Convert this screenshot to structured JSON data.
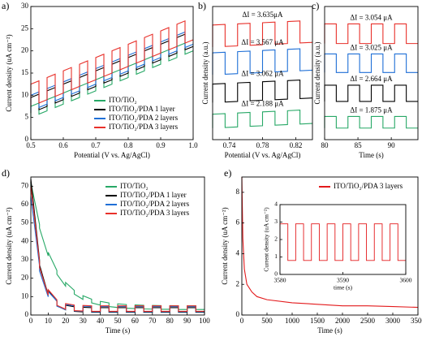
{
  "chart_data": [
    {
      "type": "line",
      "label": "a)",
      "xlabel": "Potential (V vs. Ag/AgCl)",
      "ylabel": "Current density (uA cm⁻²)",
      "xlim": [
        0.5,
        1.0
      ],
      "ylim": [
        0,
        30
      ],
      "xticks": [
        0.5,
        0.6,
        0.7,
        0.8,
        0.9,
        {
          "value": 1,
          "label": "1.0"
        }
      ],
      "yticks": [
        0,
        5,
        10,
        15,
        20,
        25,
        30
      ],
      "legend": "lower right",
      "x": [
        0.5,
        0.5,
        0.525,
        0.525,
        0.55,
        0.55,
        0.575,
        0.575,
        0.6,
        0.6,
        0.625,
        0.625,
        0.65,
        0.65,
        0.675,
        0.675,
        0.7,
        0.7,
        0.725,
        0.725,
        0.75,
        0.75,
        0.775,
        0.775,
        0.8,
        0.8,
        0.825,
        0.825,
        0.85,
        0.85,
        0.875,
        0.875,
        0.9,
        0.9,
        0.925,
        0.925,
        0.95,
        0.95,
        0.975,
        0.975,
        1.0
      ],
      "series": [
        {
          "name": "ITO/TiO₂",
          "color": "#27a866",
          "values": [
            5,
            7.5,
            8.25,
            5.75,
            6.5,
            9,
            9.75,
            7.25,
            8,
            10.5,
            11.25,
            8.75,
            9.5,
            12,
            12.75,
            10.25,
            11,
            13.5,
            14.25,
            11.75,
            12.5,
            15,
            15.75,
            13.25,
            14,
            16.5,
            17.25,
            14.75,
            15.5,
            18,
            18.75,
            16.25,
            17,
            19.5,
            20.25,
            17.75,
            18.5,
            21,
            21.75,
            19.25,
            20
          ]
        },
        {
          "name": "ITO/TiO₂/PDA  1 layer",
          "color": "#000000",
          "values": [
            6,
            9.5,
            10.25,
            6.75,
            7.5,
            11,
            11.75,
            8.25,
            9,
            12.5,
            13.25,
            9.75,
            10.5,
            14,
            14.75,
            11.25,
            12,
            15.5,
            16.25,
            12.75,
            13.5,
            17,
            17.75,
            14.25,
            15,
            18.5,
            19.25,
            15.75,
            16.5,
            20,
            20.75,
            17.25,
            18,
            21.5,
            22.25,
            18.75,
            19.5,
            23,
            23.75,
            20.25,
            21
          ]
        },
        {
          "name": "ITO/TiO₂/PDA  2 layers",
          "color": "#1f6fd6",
          "values": [
            6.5,
            10,
            10.75,
            7.25,
            8,
            11.5,
            12.25,
            8.75,
            9.5,
            13,
            13.75,
            10.25,
            11,
            14.5,
            15.25,
            11.75,
            12.5,
            16,
            16.75,
            13.25,
            14,
            17.5,
            18.25,
            14.75,
            15.5,
            19,
            19.75,
            16.25,
            17,
            20.5,
            21.25,
            17.75,
            18.5,
            22,
            22.75,
            19.25,
            20,
            23.5,
            24.25,
            20.75,
            21.5
          ]
        },
        {
          "name": "ITO/TiO₂/PDA  3 layers",
          "color": "#e8312b",
          "values": [
            7.5,
            12.5,
            13.25,
            8.25,
            9,
            14,
            14.75,
            9.75,
            10.5,
            15.5,
            16.25,
            11.25,
            12,
            17,
            17.75,
            12.75,
            13.5,
            18.5,
            19.25,
            14.25,
            15,
            20,
            20.75,
            15.75,
            16.5,
            21.5,
            22.25,
            17.25,
            18,
            23,
            23.75,
            18.75,
            19.5,
            24.5,
            25.25,
            20.25,
            21,
            26,
            26.75,
            21.75,
            22.5
          ]
        }
      ]
    },
    {
      "type": "line",
      "label": "b)",
      "xlabel": "Potential (V vs. Ag/AgCl)",
      "ylabel": "Current density (a.u.)",
      "xlim": [
        0.72,
        0.84
      ],
      "ylim": [
        0,
        11.5
      ],
      "xticks": [
        0.74,
        0.78,
        0.82
      ],
      "x": [
        0.72,
        0.72,
        0.735,
        0.735,
        0.75,
        0.75,
        0.765,
        0.765,
        0.78,
        0.78,
        0.795,
        0.795,
        0.81,
        0.81,
        0.825,
        0.825,
        0.84
      ],
      "annotations": [
        "ΔI = 3.635μA",
        "ΔI = 3.567 μA",
        "ΔI = 3.062 μA",
        "ΔI = 2.188 μA"
      ],
      "series": [
        {
          "color": "#27a866",
          "values": [
            1,
            2.2,
            2.25,
            1.05,
            1.1,
            2.3,
            2.35,
            1.15,
            1.2,
            2.4,
            2.45,
            1.25,
            1.3,
            2.5,
            2.55,
            1.35,
            1.4
          ]
        },
        {
          "color": "#000000",
          "values": [
            3.2,
            4.8,
            4.85,
            3.25,
            3.3,
            4.9,
            4.95,
            3.35,
            3.4,
            5,
            5.05,
            3.45,
            3.5,
            5.1,
            5.15,
            3.55,
            3.6
          ]
        },
        {
          "color": "#1f6fd6",
          "values": [
            5.6,
            7.5,
            7.55,
            5.65,
            5.7,
            7.6,
            7.65,
            5.75,
            5.8,
            7.7,
            7.75,
            5.85,
            5.9,
            7.8,
            7.85,
            5.95,
            6
          ]
        },
        {
          "color": "#e8312b",
          "values": [
            8,
            9.9,
            9.95,
            8.05,
            8.1,
            10,
            10.05,
            8.15,
            8.2,
            10.1,
            10.15,
            8.25,
            8.3,
            10.2,
            10.25,
            8.35,
            8.4
          ]
        }
      ]
    },
    {
      "type": "line",
      "label": "c)",
      "xlabel": "Time (s)",
      "ylabel": "Current density (a.u.)",
      "xlim": [
        80,
        94
      ],
      "ylim": [
        0,
        11.5
      ],
      "xticks": [
        80,
        85,
        90
      ],
      "x": [
        80,
        80,
        81.75,
        81.75,
        83.5,
        83.5,
        85.25,
        85.25,
        87,
        87,
        88.75,
        88.75,
        90.5,
        90.5,
        92.25,
        92.25,
        94
      ],
      "annotations": [
        "ΔI = 3.054 μA",
        "ΔI = 3.025 μA",
        "ΔI = 2.664 μA",
        "ΔI = 1.875 μA"
      ],
      "series": [
        {
          "color": "#27a866",
          "values": [
            1,
            2,
            2,
            1,
            1,
            2,
            2,
            1,
            1,
            2,
            2,
            1,
            1,
            2,
            2,
            1,
            1
          ]
        },
        {
          "color": "#000000",
          "values": [
            3.3,
            4.7,
            4.7,
            3.3,
            3.3,
            4.7,
            4.7,
            3.3,
            3.3,
            4.7,
            4.7,
            3.3,
            3.3,
            4.7,
            4.7,
            3.3,
            3.3
          ]
        },
        {
          "color": "#1f6fd6",
          "values": [
            5.8,
            7.4,
            7.4,
            5.8,
            5.8,
            7.4,
            7.4,
            5.8,
            5.8,
            7.4,
            7.4,
            5.8,
            5.8,
            7.4,
            7.4,
            5.8,
            5.8
          ]
        },
        {
          "color": "#e8312b",
          "values": [
            8.3,
            10,
            10,
            8.3,
            8.3,
            10,
            10,
            8.3,
            8.3,
            10,
            10,
            8.3,
            8.3,
            10,
            10,
            8.3,
            8.3
          ]
        }
      ]
    },
    {
      "type": "line",
      "label": "d)",
      "xlabel": "Time (s)",
      "ylabel": "Current density (uA cm⁻²)",
      "xlim": [
        0,
        100
      ],
      "ylim": [
        0,
        75
      ],
      "xticks": [
        0,
        10,
        20,
        30,
        40,
        50,
        60,
        70,
        80,
        90,
        100
      ],
      "yticks": [
        0,
        10,
        20,
        30,
        40,
        50,
        60,
        70
      ],
      "legend": "upper right",
      "x": [
        0,
        0,
        5,
        5,
        10,
        10,
        15,
        15,
        20,
        20,
        25,
        25,
        30,
        30,
        35,
        35,
        40,
        40,
        45,
        45,
        50,
        50,
        55,
        55,
        60,
        60,
        65,
        65,
        70,
        70,
        75,
        75,
        80,
        80,
        85,
        85,
        90,
        90,
        95,
        95,
        100
      ],
      "series": [
        {
          "name": "ITO/TiO₂",
          "color": "#27a866",
          "values": [
            70,
            72,
            49.2,
            47.2,
            32.1,
            34.1,
            24.2,
            22.2,
            15.7,
            17.7,
            13.4,
            11.4,
            8.5,
            10.5,
            8.6,
            6.6,
            5.4,
            7.4,
            6.6,
            4.6,
            4.1,
            6.1,
            5.7,
            3.7,
            3.5,
            5.5,
            5.3,
            3.3,
            3.2,
            5.2,
            5.1,
            3.1,
            3.1,
            5.1,
            5,
            3,
            3,
            5,
            5,
            3,
            3
          ]
        },
        {
          "name": "ITO/TiO₂/PDA  1 layer",
          "color": "#000000",
          "values": [
            71.5,
            74,
            29.8,
            27.3,
            11,
            13.5,
            7.5,
            5,
            2.8,
            5.3,
            4.5,
            2,
            1.7,
            4.2,
            4,
            1.5,
            1.5,
            4,
            4,
            1.5,
            1.5,
            4,
            4,
            1.5,
            1.5,
            4,
            4,
            1.5,
            1.5,
            4,
            4,
            1.5,
            1.5,
            4,
            4,
            1.5,
            1.5,
            4,
            4,
            1.5,
            1.5
          ]
        },
        {
          "name": "ITO/TiO₂/PDA  2 layers",
          "color": "#1f6fd6",
          "values": [
            61.8,
            64.6,
            26.7,
            23.9,
            9.9,
            12.7,
            7.6,
            4.8,
            2.9,
            5.7,
            5,
            2.2,
            2,
            4.8,
            4.6,
            1.8,
            1.8,
            4.6,
            4.6,
            1.8,
            1.8,
            4.6,
            4.6,
            1.8,
            1.8,
            4.6,
            4.6,
            1.8,
            1.8,
            4.6,
            4.6,
            1.8,
            1.8,
            4.6,
            4.6,
            1.8,
            1.8,
            4.6,
            4.6,
            1.8,
            1.8
          ]
        },
        {
          "name": "ITO/TiO₂/PDA  3 layers",
          "color": "#e8312b",
          "values": [
            67,
            70,
            28.9,
            25.9,
            10.8,
            13.8,
            8.3,
            5.3,
            3.2,
            6.2,
            5.4,
            2.4,
            2.2,
            5.2,
            5,
            2,
            2,
            5,
            5,
            2,
            2,
            5,
            5,
            2,
            2,
            5,
            5,
            2,
            2,
            5,
            5,
            2,
            2,
            5,
            5,
            2,
            2,
            5,
            5,
            2,
            2
          ]
        }
      ]
    },
    {
      "type": "line",
      "label": "e)",
      "xlabel": "Time (s)",
      "ylabel": "Current density (uA cm⁻²)",
      "xlim": [
        0,
        3500
      ],
      "ylim": [
        0,
        9
      ],
      "xticks": [
        0,
        500,
        1000,
        1500,
        2000,
        2500,
        3000,
        3500
      ],
      "yticks": [
        0,
        2,
        4,
        6,
        8
      ],
      "legend": "upper right",
      "x": [
        0,
        20,
        50,
        100,
        200,
        300,
        500,
        1000,
        1500,
        2000,
        2500,
        3000,
        3500
      ],
      "series": [
        {
          "name": "ITO/TiO₂/PDA  3 layers",
          "color": "#e31a1c",
          "values": [
            9,
            5,
            3,
            2,
            1.5,
            1.2,
            1,
            0.8,
            0.7,
            0.6,
            0.6,
            0.55,
            0.5
          ]
        }
      ]
    },
    {
      "type": "line",
      "xlabel": "time (s)",
      "ylabel": "Current density (uA cm⁻²)",
      "xlim": [
        3580,
        3600
      ],
      "ylim": [
        0,
        4
      ],
      "xticks": [
        3580,
        3590,
        3600
      ],
      "yticks": [
        0,
        1,
        2,
        3,
        4
      ],
      "x": [
        3580,
        3580,
        3581.25,
        3581.25,
        3582.5,
        3582.5,
        3583.75,
        3583.75,
        3585,
        3585,
        3586.25,
        3586.25,
        3587.5,
        3587.5,
        3588.75,
        3588.75,
        3590,
        3590,
        3591.25,
        3591.25,
        3592.5,
        3592.5,
        3593.75,
        3593.75,
        3595,
        3595,
        3596.25,
        3596.25,
        3597.5,
        3597.5,
        3598.75,
        3598.75,
        3600
      ],
      "series": [
        {
          "color": "#e31a1c",
          "values": [
            0.8,
            2.9,
            2.9,
            0.8,
            0.8,
            2.9,
            2.9,
            0.8,
            0.8,
            2.9,
            2.9,
            0.8,
            0.8,
            2.9,
            2.9,
            0.8,
            0.8,
            2.9,
            2.9,
            0.8,
            0.8,
            2.9,
            2.9,
            0.8,
            0.8,
            2.9,
            2.9,
            0.8,
            0.8,
            2.9,
            2.9,
            0.8,
            0.8
          ]
        }
      ]
    }
  ]
}
